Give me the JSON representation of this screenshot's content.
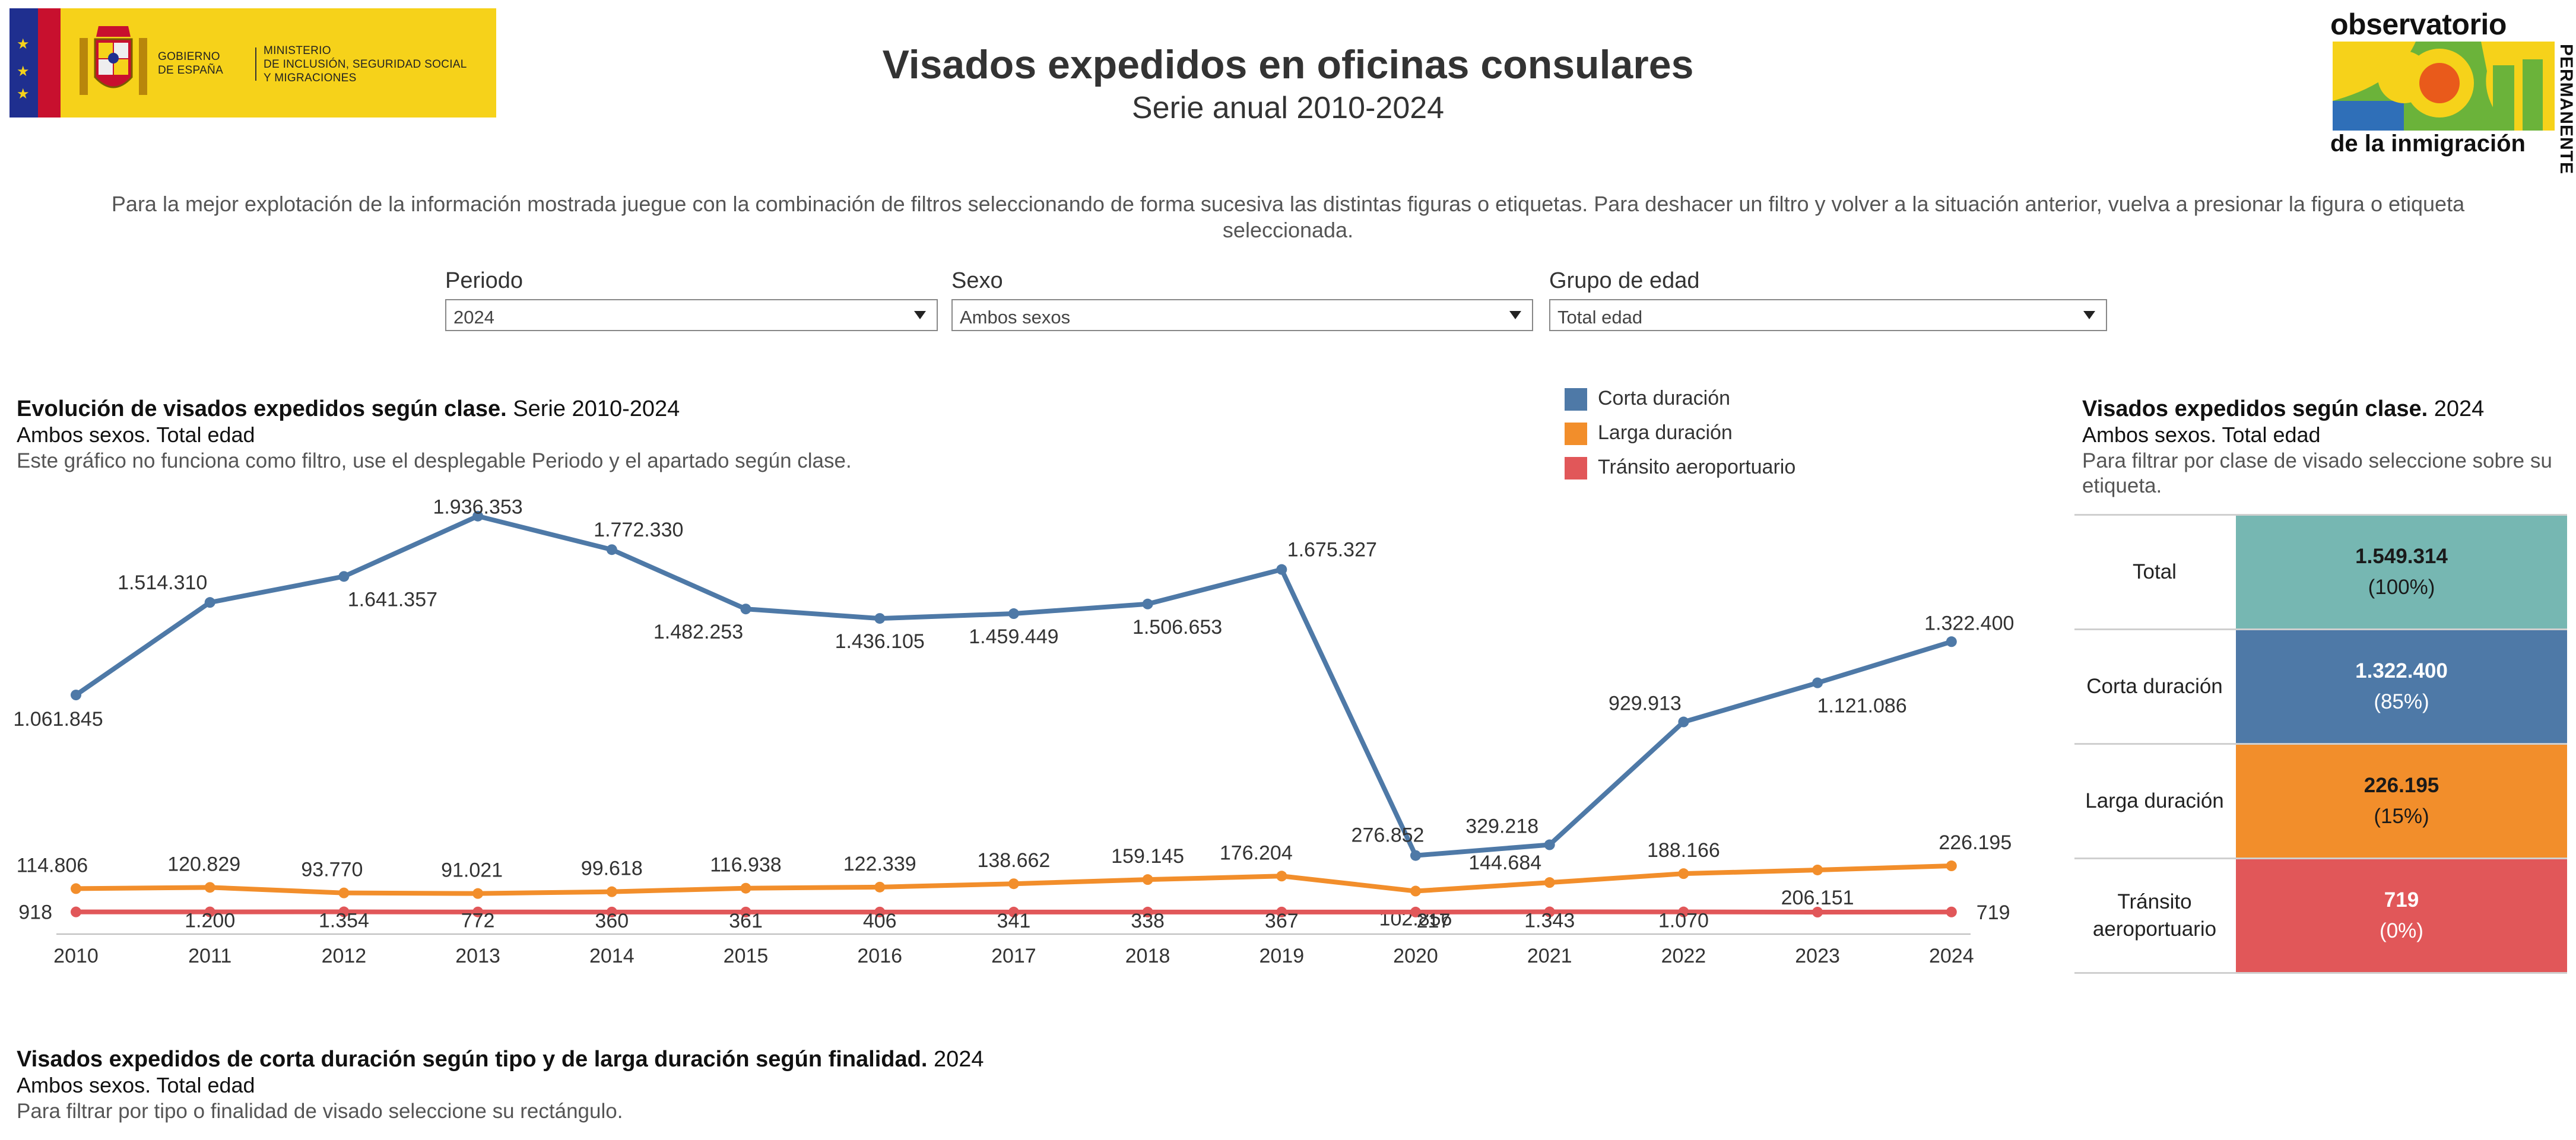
{
  "header": {
    "gov_logo": {
      "ministry_left": [
        "GOBIERNO",
        "DE ESPAÑA"
      ],
      "ministry_right": [
        "MINISTERIO",
        "DE INCLUSIÓN, SEGURIDAD SOCIAL",
        "Y MIGRACIONES"
      ]
    },
    "opi_logo": {
      "top": "observatorio",
      "side": "PERMANENTE",
      "bottom": "de la inmigración"
    },
    "title": "Visados expedidos en oficinas consulares",
    "subtitle": "Serie anual 2010-2024",
    "instructions": "Para la mejor explotación de la información mostrada juegue con la combinación de filtros seleccionando de forma sucesiva las distintas figuras o etiquetas. Para deshacer un filtro y volver a la situación anterior, vuelva a presionar la figura o etiqueta seleccionada."
  },
  "filters": {
    "periodo": {
      "label": "Periodo",
      "value": "2024"
    },
    "sexo": {
      "label": "Sexo",
      "value": "Ambos sexos"
    },
    "edad": {
      "label": "Grupo de edad",
      "value": "Total edad"
    }
  },
  "evolution": {
    "title_bold": "Evolución de visados expedidos según clase.",
    "title_rest": " Serie 2010-2024",
    "subtitle": "Ambos sexos. Total edad",
    "note": "Este gráfico no funciona como filtro, use el desplegable Periodo y el apartado según clase."
  },
  "legend": [
    {
      "label": "Corta duración",
      "color": "#4e79a7"
    },
    {
      "label": "Larga duración",
      "color": "#f28e2b"
    },
    {
      "label": "Tránsito aeroportuario",
      "color": "#e15759"
    }
  ],
  "chart_data": {
    "type": "line",
    "title": "Evolución de visados expedidos según clase. Serie 2010-2024",
    "categories": [
      "2010",
      "2011",
      "2012",
      "2013",
      "2014",
      "2015",
      "2016",
      "2017",
      "2018",
      "2019",
      "2020",
      "2021",
      "2022",
      "2023",
      "2024"
    ],
    "ylim": [
      0,
      1950000
    ],
    "grid": false,
    "legend_position": "top-right",
    "series": [
      {
        "name": "Corta duración",
        "color": "#4e79a7",
        "values": [
          1061845,
          1514310,
          1641357,
          1936353,
          1772330,
          1482253,
          1436105,
          1459449,
          1506653,
          1675327,
          276852,
          329218,
          929913,
          1121086,
          1322400
        ],
        "labels": [
          "1.061.845",
          "1.514.310",
          "1.641.357",
          "1.936.353",
          "1.772.330",
          "1.482.253",
          "1.436.105",
          "1.459.449",
          "1.506.653",
          "1.675.327",
          "276.852",
          "329.218",
          "929.913",
          "1.121.086",
          "1.322.400"
        ]
      },
      {
        "name": "Larga duración",
        "color": "#f28e2b",
        "values": [
          114806,
          120829,
          93770,
          91021,
          99618,
          116938,
          122339,
          138662,
          159145,
          176204,
          102856,
          144684,
          188166,
          206151,
          226195
        ],
        "labels": [
          "114.806",
          "120.829",
          "93.770",
          "91.021",
          "99.618",
          "116.938",
          "122.339",
          "138.662",
          "159.145",
          "176.204",
          "102.856",
          "144.684",
          "188.166",
          "206.151",
          "226.195"
        ]
      },
      {
        "name": "Tránsito aeroportuario",
        "color": "#e15759",
        "values": [
          918,
          1200,
          1354,
          772,
          360,
          361,
          406,
          341,
          338,
          367,
          217,
          1343,
          1070,
          0,
          719
        ],
        "labels": [
          "918",
          "1.200",
          "1.354",
          "772",
          "360",
          "361",
          "406",
          "341",
          "338",
          "367",
          "217",
          "1.343",
          "1.070",
          "",
          "719"
        ]
      }
    ]
  },
  "class_table": {
    "title_bold": "Visados expedidos según clase.",
    "title_rest": " 2024",
    "subtitle": "Ambos sexos. Total edad",
    "note": "Para filtrar por clase de visado seleccione sobre su etiqueta.",
    "rows": [
      {
        "name": "Total",
        "value": "1.549.314",
        "pct": "(100%)",
        "bg": "#76b7b2",
        "fg": "#1a1a1a"
      },
      {
        "name": "Corta duración",
        "value": "1.322.400",
        "pct": "(85%)",
        "bg": "#4e79a7",
        "fg": "#ffffff"
      },
      {
        "name": "Larga duración",
        "value": "226.195",
        "pct": "(15%)",
        "bg": "#f28e2b",
        "fg": "#1a1a1a"
      },
      {
        "name": "Tránsito aeroportuario",
        "value": "719",
        "pct": "(0%)",
        "bg": "#e15759",
        "fg": "#ffffff"
      }
    ]
  },
  "bottom_section": {
    "title_bold": "Visados expedidos de corta duración según tipo y de larga duración según finalidad.",
    "title_rest": " 2024",
    "subtitle": "Ambos sexos. Total edad",
    "note": "Para filtrar por tipo o finalidad de visado seleccione su rectángulo."
  }
}
